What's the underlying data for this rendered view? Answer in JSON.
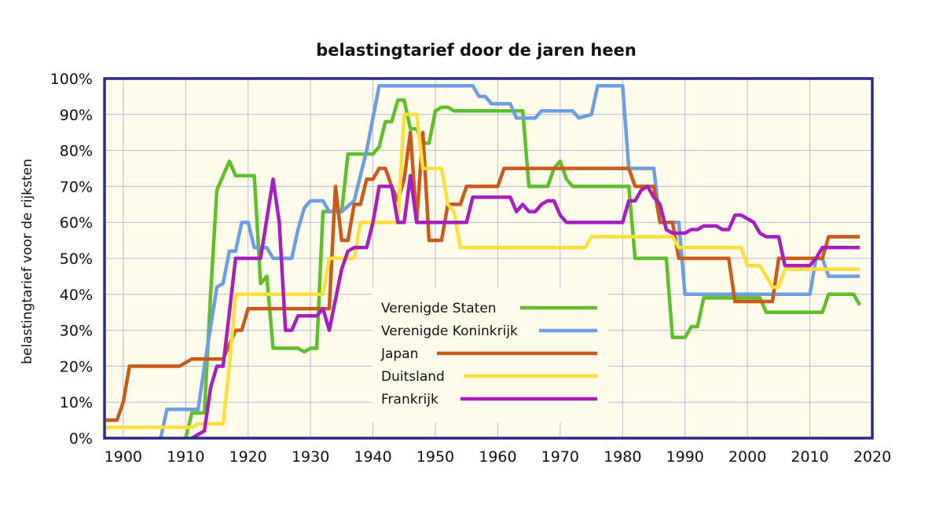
{
  "chart_data": {
    "type": "line",
    "title": "belastingtarief door de jaren heen",
    "xlabel": "",
    "ylabel": "belastingtarief voor de rijksten",
    "xlim": [
      1897,
      2020
    ],
    "ylim": [
      0,
      100
    ],
    "xticks": [
      1900,
      1910,
      1920,
      1930,
      1940,
      1950,
      1960,
      1970,
      1980,
      1990,
      2000,
      2010,
      2020
    ],
    "xtick_labels": [
      "1900",
      "1910",
      "1920",
      "1930",
      "1940",
      "1950",
      "1960",
      "1970",
      "1980",
      "1990",
      "2000",
      "2010",
      "2020"
    ],
    "yticks": [
      0,
      10,
      20,
      30,
      40,
      50,
      60,
      70,
      80,
      90,
      100
    ],
    "ytick_labels": [
      "0%",
      "10%",
      "20%",
      "30%",
      "40%",
      "50%",
      "60%",
      "70%",
      "80%",
      "90%",
      "100%"
    ],
    "grid": true,
    "legend_position": "center-left",
    "colors": {
      "plot_background": "#fdfbea",
      "frame": "#2b2b8c",
      "grid": "#b9b9d9"
    },
    "series": [
      {
        "name": "Verenigde Staten",
        "color": "#5fbf2a",
        "points": [
          [
            1910,
            0
          ],
          [
            1911,
            7
          ],
          [
            1913,
            7
          ],
          [
            1914,
            40
          ],
          [
            1915,
            69
          ],
          [
            1917,
            77
          ],
          [
            1918,
            73
          ],
          [
            1921,
            73
          ],
          [
            1922,
            43
          ],
          [
            1923,
            45
          ],
          [
            1924,
            25
          ],
          [
            1925,
            25
          ],
          [
            1928,
            25
          ],
          [
            1929,
            24
          ],
          [
            1930,
            25
          ],
          [
            1931,
            25
          ],
          [
            1932,
            63
          ],
          [
            1935,
            63
          ],
          [
            1936,
            79
          ],
          [
            1940,
            79
          ],
          [
            1941,
            81
          ],
          [
            1942,
            88
          ],
          [
            1943,
            88
          ],
          [
            1944,
            94
          ],
          [
            1945,
            94
          ],
          [
            1946,
            86
          ],
          [
            1947,
            86
          ],
          [
            1948,
            82
          ],
          [
            1949,
            82
          ],
          [
            1950,
            91
          ],
          [
            1951,
            92
          ],
          [
            1952,
            92
          ],
          [
            1953,
            91
          ],
          [
            1964,
            91
          ],
          [
            1965,
            70
          ],
          [
            1968,
            70
          ],
          [
            1969,
            75
          ],
          [
            1970,
            77
          ],
          [
            1971,
            72
          ],
          [
            1972,
            70
          ],
          [
            1981,
            70
          ],
          [
            1982,
            50
          ],
          [
            1987,
            50
          ],
          [
            1988,
            28
          ],
          [
            1990,
            28
          ],
          [
            1991,
            31
          ],
          [
            1992,
            31
          ],
          [
            1993,
            39
          ],
          [
            2000,
            39
          ],
          [
            2002,
            39
          ],
          [
            2003,
            35
          ],
          [
            2012,
            35
          ],
          [
            2013,
            40
          ],
          [
            2017,
            40
          ],
          [
            2018,
            37
          ]
        ]
      },
      {
        "name": "Verenigde Koninkrijk",
        "color": "#6f9ee0",
        "points": [
          [
            1906,
            0
          ],
          [
            1907,
            8
          ],
          [
            1912,
            8
          ],
          [
            1913,
            20
          ],
          [
            1915,
            42
          ],
          [
            1916,
            43
          ],
          [
            1917,
            52
          ],
          [
            1918,
            52
          ],
          [
            1919,
            60
          ],
          [
            1920,
            60
          ],
          [
            1921,
            53
          ],
          [
            1923,
            53
          ],
          [
            1924,
            50
          ],
          [
            1927,
            50
          ],
          [
            1928,
            58
          ],
          [
            1929,
            64
          ],
          [
            1930,
            66
          ],
          [
            1932,
            66
          ],
          [
            1933,
            63
          ],
          [
            1935,
            63
          ],
          [
            1937,
            66
          ],
          [
            1939,
            80
          ],
          [
            1941,
            98
          ],
          [
            1956,
            98
          ],
          [
            1957,
            95
          ],
          [
            1958,
            95
          ],
          [
            1959,
            93
          ],
          [
            1962,
            93
          ],
          [
            1963,
            89
          ],
          [
            1966,
            89
          ],
          [
            1967,
            91
          ],
          [
            1972,
            91
          ],
          [
            1973,
            89
          ],
          [
            1975,
            90
          ],
          [
            1976,
            98
          ],
          [
            1980,
            98
          ],
          [
            1981,
            75
          ],
          [
            1985,
            75
          ],
          [
            1986,
            60
          ],
          [
            1989,
            60
          ],
          [
            1990,
            40
          ],
          [
            2010,
            40
          ],
          [
            2011,
            50
          ],
          [
            2012,
            50
          ],
          [
            2013,
            45
          ],
          [
            2018,
            45
          ]
        ]
      },
      {
        "name": "Japan",
        "color": "#c85a1a",
        "points": [
          [
            1897,
            5
          ],
          [
            1899,
            5
          ],
          [
            1900,
            10
          ],
          [
            1901,
            20
          ],
          [
            1907,
            20
          ],
          [
            1909,
            20
          ],
          [
            1911,
            22
          ],
          [
            1916,
            22
          ],
          [
            1918,
            30
          ],
          [
            1919,
            30
          ],
          [
            1920,
            36
          ],
          [
            1933,
            36
          ],
          [
            1934,
            70
          ],
          [
            1935,
            55
          ],
          [
            1936,
            55
          ],
          [
            1937,
            65
          ],
          [
            1938,
            65
          ],
          [
            1939,
            72
          ],
          [
            1940,
            72
          ],
          [
            1941,
            75
          ],
          [
            1942,
            75
          ],
          [
            1943,
            70
          ],
          [
            1944,
            66
          ],
          [
            1945,
            72
          ],
          [
            1946,
            85
          ],
          [
            1947,
            60
          ],
          [
            1948,
            85
          ],
          [
            1949,
            55
          ],
          [
            1951,
            55
          ],
          [
            1952,
            65
          ],
          [
            1954,
            65
          ],
          [
            1955,
            70
          ],
          [
            1960,
            70
          ],
          [
            1961,
            75
          ],
          [
            1981,
            75
          ],
          [
            1982,
            70
          ],
          [
            1985,
            70
          ],
          [
            1986,
            60
          ],
          [
            1988,
            60
          ],
          [
            1989,
            50
          ],
          [
            1997,
            50
          ],
          [
            1998,
            38
          ],
          [
            2004,
            38
          ],
          [
            2005,
            50
          ],
          [
            2012,
            50
          ],
          [
            2013,
            56
          ],
          [
            2018,
            56
          ]
        ]
      },
      {
        "name": "Duitsland",
        "color": "#ffe03a",
        "points": [
          [
            1897,
            3
          ],
          [
            1910,
            3
          ],
          [
            1911,
            3
          ],
          [
            1912,
            4
          ],
          [
            1913,
            4
          ],
          [
            1914,
            4
          ],
          [
            1916,
            4
          ],
          [
            1917,
            20
          ],
          [
            1918,
            40
          ],
          [
            1931,
            40
          ],
          [
            1932,
            40
          ],
          [
            1933,
            50
          ],
          [
            1937,
            50
          ],
          [
            1938,
            60
          ],
          [
            1944,
            60
          ],
          [
            1945,
            90
          ],
          [
            1947,
            90
          ],
          [
            1948,
            75
          ],
          [
            1951,
            75
          ],
          [
            1952,
            65
          ],
          [
            1953,
            63
          ],
          [
            1954,
            53
          ],
          [
            1974,
            53
          ],
          [
            1975,
            56
          ],
          [
            1988,
            56
          ],
          [
            1989,
            53
          ],
          [
            1999,
            53
          ],
          [
            2000,
            48
          ],
          [
            2002,
            48
          ],
          [
            2003,
            45
          ],
          [
            2004,
            42
          ],
          [
            2005,
            42
          ],
          [
            2006,
            47
          ],
          [
            2018,
            47
          ]
        ]
      },
      {
        "name": "Frankrijk",
        "color": "#a61fbe",
        "points": [
          [
            1911,
            0
          ],
          [
            1913,
            2
          ],
          [
            1914,
            14
          ],
          [
            1915,
            20
          ],
          [
            1916,
            20
          ],
          [
            1917,
            35
          ],
          [
            1918,
            50
          ],
          [
            1922,
            50
          ],
          [
            1924,
            72
          ],
          [
            1925,
            60
          ],
          [
            1926,
            30
          ],
          [
            1927,
            30
          ],
          [
            1928,
            34
          ],
          [
            1931,
            34
          ],
          [
            1932,
            36
          ],
          [
            1933,
            30
          ],
          [
            1935,
            47
          ],
          [
            1936,
            52
          ],
          [
            1937,
            53
          ],
          [
            1939,
            53
          ],
          [
            1940,
            60
          ],
          [
            1941,
            70
          ],
          [
            1943,
            70
          ],
          [
            1944,
            60
          ],
          [
            1945,
            60
          ],
          [
            1946,
            73
          ],
          [
            1947,
            60
          ],
          [
            1955,
            60
          ],
          [
            1956,
            67
          ],
          [
            1962,
            67
          ],
          [
            1963,
            63
          ],
          [
            1964,
            65
          ],
          [
            1965,
            63
          ],
          [
            1966,
            63
          ],
          [
            1967,
            65
          ],
          [
            1968,
            66
          ],
          [
            1969,
            66
          ],
          [
            1970,
            62
          ],
          [
            1971,
            60
          ],
          [
            1980,
            60
          ],
          [
            1981,
            66
          ],
          [
            1982,
            66
          ],
          [
            1983,
            69
          ],
          [
            1984,
            70
          ],
          [
            1985,
            67
          ],
          [
            1986,
            65
          ],
          [
            1987,
            58
          ],
          [
            1988,
            57
          ],
          [
            1990,
            57
          ],
          [
            1991,
            58
          ],
          [
            1992,
            58
          ],
          [
            1993,
            59
          ],
          [
            1995,
            59
          ],
          [
            1996,
            58
          ],
          [
            1997,
            58
          ],
          [
            1998,
            62
          ],
          [
            1999,
            62
          ],
          [
            2000,
            61
          ],
          [
            2001,
            60
          ],
          [
            2002,
            57
          ],
          [
            2003,
            56
          ],
          [
            2005,
            56
          ],
          [
            2006,
            48
          ],
          [
            2010,
            48
          ],
          [
            2011,
            50
          ],
          [
            2012,
            53
          ],
          [
            2018,
            53
          ]
        ]
      }
    ]
  }
}
